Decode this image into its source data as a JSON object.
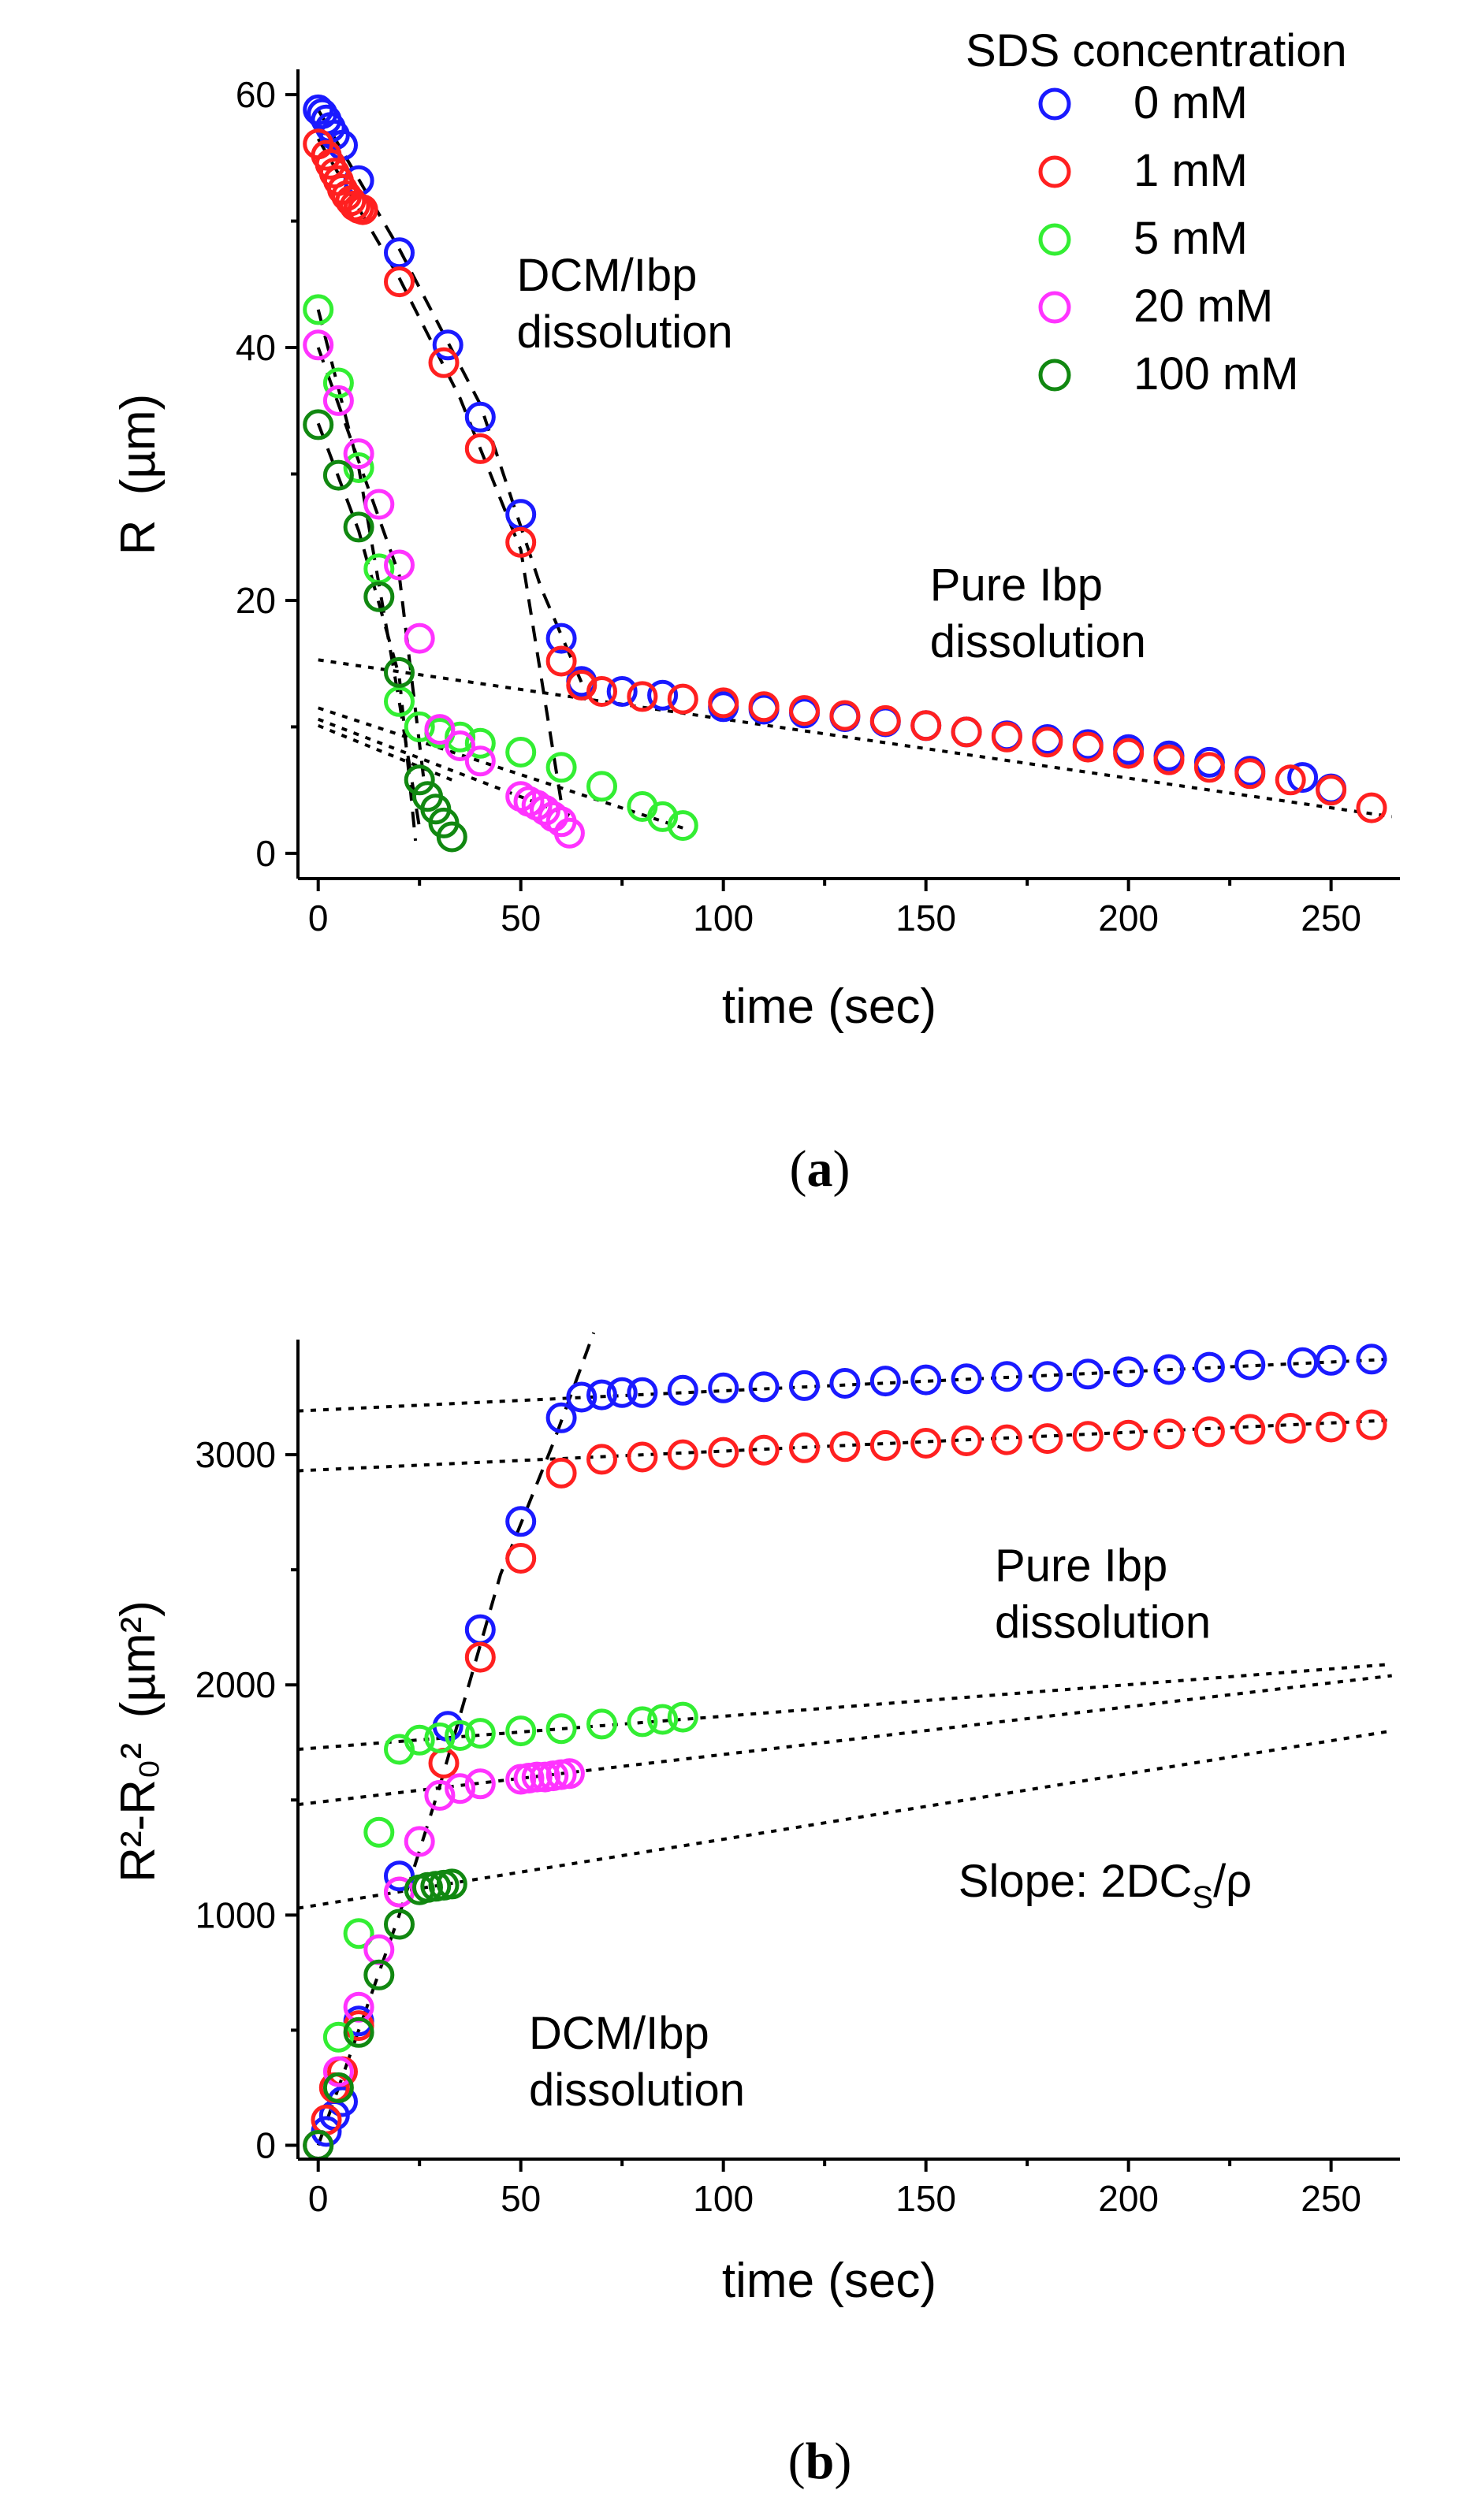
{
  "legend": {
    "title": "SDS concentration",
    "items": [
      {
        "label": "0 mM",
        "color": "#1a1aff"
      },
      {
        "label": "1 mM",
        "color": "#ff2020"
      },
      {
        "label": "5 mM",
        "color": "#33ee33"
      },
      {
        "label": "20 mM",
        "color": "#ff33ff"
      },
      {
        "label": "100 mM",
        "color": "#118811"
      }
    ]
  },
  "chart_data": [
    {
      "type": "scatter",
      "caption": "a",
      "xlabel": "time (sec)",
      "ylabel_main": "R",
      "ylabel_unit": "(µm)",
      "xlim": [
        -5,
        267
      ],
      "ylim": [
        -2,
        62
      ],
      "xticks": [
        0,
        50,
        100,
        150,
        200,
        250
      ],
      "yticks": [
        0,
        20,
        40,
        60
      ],
      "annotations": [
        {
          "lines": [
            "DCM/Ibp",
            "dissolution"
          ],
          "x": 49,
          "y": 44.5
        },
        {
          "lines": [
            "Pure Ibp",
            "dissolution"
          ],
          "x": 151,
          "y": 20
        }
      ],
      "series": [
        {
          "name": "0 mM",
          "x": [
            0,
            1,
            2,
            3,
            4,
            6,
            10,
            20,
            32,
            40,
            50,
            60,
            65,
            75,
            85,
            100,
            110,
            120,
            130,
            140,
            150,
            160,
            170,
            180,
            190,
            200,
            210,
            220,
            230,
            243,
            250
          ],
          "y": [
            58.8,
            58.5,
            58.0,
            57.4,
            56.8,
            56.0,
            53.2,
            47.5,
            40.2,
            34.5,
            26.8,
            17.0,
            13.6,
            12.8,
            12.5,
            11.6,
            11.4,
            11.1,
            10.8,
            10.4,
            10.1,
            9.6,
            9.3,
            9.0,
            8.6,
            8.2,
            7.7,
            7.2,
            6.5,
            6.0,
            5.1
          ]
        },
        {
          "name": "1 mM",
          "x": [
            0,
            2,
            3,
            4,
            5,
            6,
            7,
            8,
            9,
            10,
            11,
            20,
            31,
            40,
            50,
            60,
            65,
            70,
            80,
            90,
            100,
            110,
            120,
            130,
            140,
            150,
            160,
            170,
            180,
            190,
            200,
            210,
            220,
            230,
            240,
            250,
            260
          ],
          "y": [
            56.1,
            55.2,
            54.5,
            53.8,
            53.2,
            52.5,
            52.0,
            51.6,
            51.2,
            51.0,
            50.9,
            45.2,
            38.8,
            32.0,
            24.6,
            15.2,
            13.3,
            12.8,
            12.4,
            12.2,
            11.9,
            11.6,
            11.3,
            10.9,
            10.5,
            10.1,
            9.6,
            9.2,
            8.8,
            8.4,
            7.9,
            7.4,
            6.8,
            6.3,
            5.8,
            5.0,
            3.6
          ]
        },
        {
          "name": "5 mM",
          "x": [
            0,
            5,
            10,
            15,
            20,
            25,
            30,
            35,
            40,
            50,
            60,
            70,
            80,
            85,
            90
          ],
          "y": [
            43.0,
            37.2,
            30.5,
            22.5,
            12.0,
            10.0,
            9.5,
            9.2,
            8.7,
            8.0,
            6.8,
            5.3,
            3.7,
            2.9,
            2.2
          ]
        },
        {
          "name": "20 mM",
          "x": [
            0,
            5,
            10,
            15,
            20,
            25,
            30,
            35,
            40,
            50,
            52,
            54,
            56,
            58,
            60,
            62
          ],
          "y": [
            40.2,
            35.8,
            31.6,
            27.6,
            22.8,
            17.0,
            9.8,
            8.5,
            7.3,
            4.5,
            4.1,
            3.8,
            3.4,
            2.9,
            2.5,
            1.6
          ]
        },
        {
          "name": "100 mM",
          "x": [
            0,
            5,
            10,
            15,
            20,
            25,
            27,
            29,
            31,
            33
          ],
          "y": [
            33.9,
            29.9,
            25.8,
            20.3,
            14.3,
            5.8,
            4.5,
            3.5,
            2.4,
            1.3
          ]
        }
      ]
    },
    {
      "type": "scatter",
      "caption": "b",
      "xlabel": "time (sec)",
      "ylabel_main": "R²-R₀²",
      "ylabel_unit": "(µm²)",
      "xlim": [
        -5,
        267
      ],
      "ylim": [
        -60,
        3500
      ],
      "xticks": [
        0,
        50,
        100,
        150,
        200,
        250
      ],
      "yticks": [
        0,
        1000,
        2000,
        3000
      ],
      "annotations": [
        {
          "lines": [
            "Pure Ibp",
            "dissolution"
          ],
          "x": 167,
          "y": 2450
        },
        {
          "lines": [
            "DCM/Ibp",
            "dissolution"
          ],
          "x": 52,
          "y": 420
        }
      ],
      "slope_note": {
        "text": "Slope: 2DC",
        "sub": "S",
        "tail": "/ρ",
        "x": 158,
        "y": 1080
      },
      "series": [
        {
          "name": "0 mM",
          "x": [
            0,
            2,
            4,
            6,
            10,
            20,
            32,
            40,
            50,
            60,
            65,
            70,
            75,
            80,
            90,
            100,
            110,
            120,
            130,
            140,
            150,
            160,
            170,
            180,
            190,
            200,
            210,
            220,
            230,
            243,
            250,
            260
          ],
          "y": [
            0,
            60,
            130,
            190,
            540,
            1170,
            1820,
            2240,
            2710,
            3160,
            3250,
            3260,
            3270,
            3270,
            3280,
            3290,
            3295,
            3300,
            3310,
            3320,
            3325,
            3330,
            3340,
            3340,
            3350,
            3360,
            3370,
            3380,
            3390,
            3400,
            3410,
            3415
          ]
        },
        {
          "name": "1 mM",
          "x": [
            0,
            2,
            4,
            6,
            10,
            20,
            31,
            40,
            50,
            60,
            70,
            80,
            90,
            100,
            110,
            120,
            130,
            140,
            150,
            160,
            170,
            180,
            190,
            200,
            210,
            220,
            230,
            240,
            250,
            260
          ],
          "y": [
            0,
            110,
            250,
            320,
            520,
            1100,
            1660,
            2120,
            2550,
            2920,
            2980,
            2990,
            3000,
            3010,
            3020,
            3030,
            3035,
            3040,
            3050,
            3060,
            3065,
            3070,
            3080,
            3085,
            3090,
            3100,
            3110,
            3115,
            3120,
            3130
          ]
        },
        {
          "name": "5 mM",
          "x": [
            0,
            5,
            10,
            15,
            20,
            25,
            30,
            35,
            40,
            50,
            60,
            70,
            80,
            85,
            90
          ],
          "y": [
            0,
            470,
            920,
            1360,
            1720,
            1760,
            1770,
            1780,
            1790,
            1800,
            1810,
            1830,
            1840,
            1850,
            1860
          ]
        },
        {
          "name": "20 mM",
          "x": [
            0,
            5,
            10,
            15,
            20,
            25,
            30,
            35,
            40,
            50,
            52,
            54,
            56,
            58,
            60,
            62
          ],
          "y": [
            0,
            320,
            600,
            850,
            1100,
            1320,
            1520,
            1550,
            1570,
            1590,
            1595,
            1600,
            1600,
            1605,
            1610,
            1615
          ]
        },
        {
          "name": "100 mM",
          "x": [
            0,
            5,
            10,
            15,
            20,
            25,
            27,
            29,
            31,
            33
          ],
          "y": [
            0,
            250,
            490,
            740,
            960,
            1110,
            1120,
            1125,
            1130,
            1135
          ]
        }
      ]
    }
  ]
}
